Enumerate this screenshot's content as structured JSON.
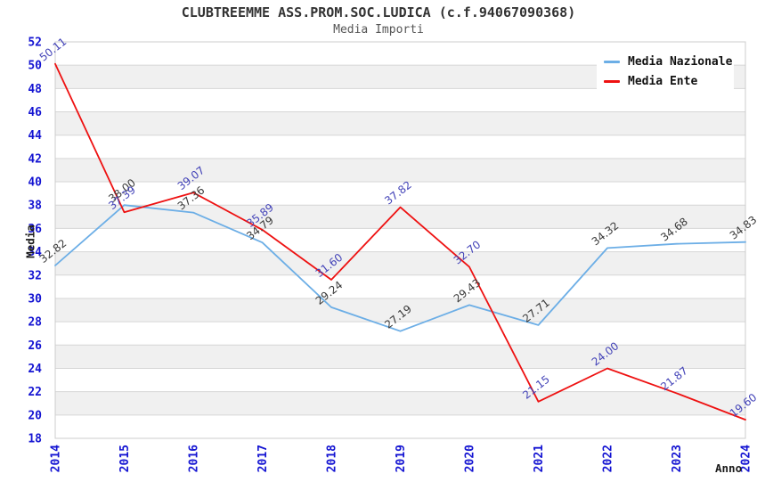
{
  "chart_data": {
    "type": "line",
    "title": "CLUBTREEMME ASS.PROM.SOC.LUDICA (c.f.94067090368)",
    "subtitle": "Media Importi",
    "xlabel": "Anno",
    "ylabel": "Media",
    "categories": [
      "2014",
      "2015",
      "2016",
      "2017",
      "2018",
      "2019",
      "2020",
      "2021",
      "2022",
      "2023",
      "2024"
    ],
    "ylim": [
      18,
      52
    ],
    "y_ticks": [
      18,
      20,
      22,
      24,
      26,
      28,
      30,
      32,
      34,
      36,
      38,
      40,
      42,
      44,
      46,
      48,
      50,
      52
    ],
    "grid": "horizontal gridlines every 2 units with alternating white / light-gray bands, no vertical gridlines",
    "legend_position": "top-right",
    "point_labels": "every point labeled with its value (2 decimals), rotated ~38 degrees",
    "series": [
      {
        "name": "Media Nazionale",
        "color": "#6caee6",
        "label_color": "#3a3a3a",
        "values": [
          32.82,
          38.0,
          37.36,
          34.79,
          29.24,
          27.19,
          29.43,
          27.71,
          34.32,
          34.68,
          34.83
        ]
      },
      {
        "name": "Media Ente",
        "color": "#ee1111",
        "label_color": "#4343b8",
        "values": [
          50.11,
          37.39,
          39.07,
          35.89,
          31.6,
          37.82,
          32.7,
          21.15,
          24.0,
          21.87,
          19.6
        ]
      }
    ],
    "colors": {
      "tick_label": "#1414d2",
      "axis_title": "#1a1a1a",
      "title": "#333333",
      "subtitle": "#555555",
      "band": "#f0f0f0",
      "gridline": "#d6d6d6",
      "plot_border": "#cccccc",
      "background": "#ffffff",
      "legend_text": "#111111"
    }
  }
}
